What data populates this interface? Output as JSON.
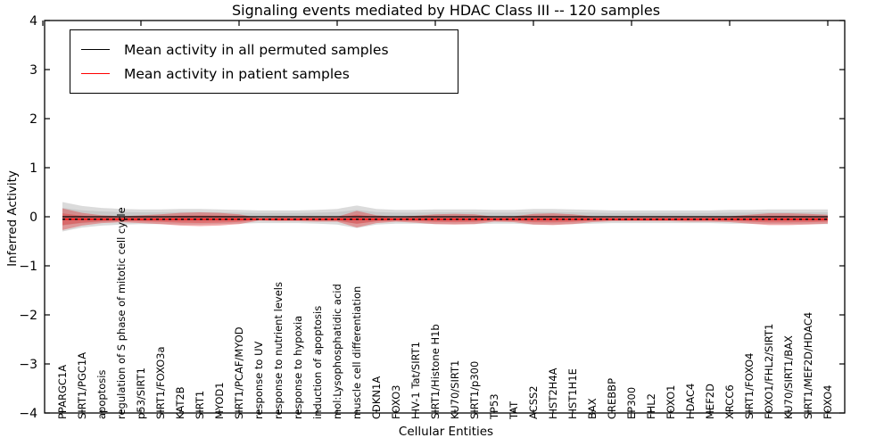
{
  "chart_data": {
    "type": "area",
    "title": "Signaling events mediated by HDAC Class III -- 120 samples",
    "xlabel": "Cellular Entities",
    "ylabel": "Inferred Activity",
    "ylim": [
      -4,
      4
    ],
    "yticks": [
      4,
      3,
      2,
      1,
      0,
      -1,
      -2,
      -3,
      -4
    ],
    "grid": false,
    "legend_position": "upper left",
    "x_categories": [
      "PPARGC1A",
      "SIRT1/PGC1A",
      "apoptosis",
      "regulation of S phase of mitotic cell cycle",
      "p53/SIRT1",
      "SIRT1/FOXO3a",
      "KAT2B",
      "SIRT1",
      "MYOD1",
      "SIRT1/PCAF/MYOD",
      "response to UV",
      "response to nutrient levels",
      "response to hypoxia",
      "induction of apoptosis",
      "mol:Lysophosphatidic acid",
      "muscle cell differentiation",
      "CDKN1A",
      "FOXO3",
      "HIV-1 Tat/SIRT1",
      "SIRT1/Histone H1b",
      "KU70/SIRT1",
      "SIRT1/p300",
      "TP53",
      "TAT",
      "ACSS2",
      "HIST2H4A",
      "HIST1H1E",
      "BAX",
      "CREBBP",
      "EP300",
      "FHL2",
      "FOXO1",
      "HDAC4",
      "MEF2D",
      "XRCC6",
      "SIRT1/FOXO4",
      "FOXO1/FHL2/SIRT1",
      "KU70/SIRT1/BAX",
      "SIRT1/MEF2D/HDAC4",
      "FOXO4"
    ],
    "series": [
      {
        "name": "Mean activity in all permuted samples",
        "color": "#000000",
        "line_style": "solid-with-dashes",
        "mean": 0.0,
        "band_color": "#000000",
        "band_opacity_outer": 0.14,
        "band_opacity_inner": 0.08,
        "inner_fraction": 0.6,
        "band_halfwidth": [
          0.3,
          0.22,
          0.18,
          0.16,
          0.15,
          0.15,
          0.16,
          0.16,
          0.15,
          0.14,
          0.13,
          0.13,
          0.13,
          0.14,
          0.16,
          0.23,
          0.16,
          0.14,
          0.14,
          0.15,
          0.15,
          0.15,
          0.14,
          0.14,
          0.16,
          0.16,
          0.15,
          0.14,
          0.13,
          0.13,
          0.13,
          0.13,
          0.13,
          0.13,
          0.14,
          0.14,
          0.15,
          0.15,
          0.15,
          0.15
        ]
      },
      {
        "name": "Mean activity in patient samples",
        "color": "#ff0000",
        "line_style": "solid",
        "mean": -0.05,
        "band_color": "#e41a1c",
        "band_opacity_outer": 0.35,
        "band_opacity_inner": 0.3,
        "inner_fraction": 0.55,
        "band_halfwidth": [
          0.22,
          0.13,
          0.08,
          0.06,
          0.08,
          0.1,
          0.13,
          0.14,
          0.13,
          0.1,
          0.03,
          0.04,
          0.04,
          0.05,
          0.05,
          0.17,
          0.08,
          0.05,
          0.07,
          0.1,
          0.11,
          0.1,
          0.05,
          0.06,
          0.11,
          0.12,
          0.1,
          0.06,
          0.04,
          0.04,
          0.04,
          0.04,
          0.05,
          0.05,
          0.06,
          0.09,
          0.12,
          0.12,
          0.11,
          0.09
        ]
      }
    ]
  }
}
